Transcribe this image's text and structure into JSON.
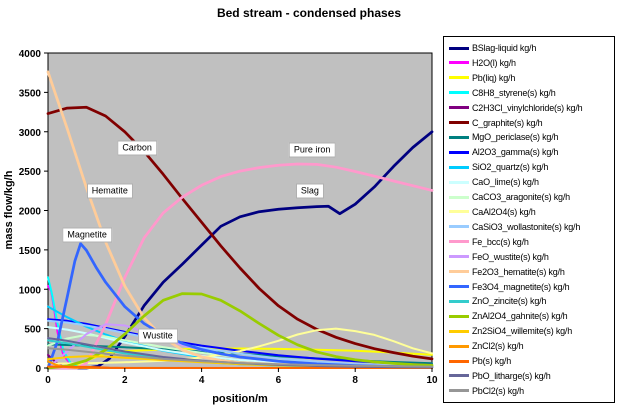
{
  "chart_data": {
    "type": "line",
    "title": "Bed stream - condensed phases",
    "xlabel": "position/m",
    "ylabel": "mass flow/kg/h",
    "xlim": [
      0,
      10
    ],
    "ylim": [
      0,
      4000
    ],
    "x_ticks": [
      0,
      2,
      4,
      6,
      8,
      10
    ],
    "y_ticks": [
      0,
      500,
      1000,
      1500,
      2000,
      2500,
      3000,
      3500,
      4000
    ],
    "grid": false,
    "plot_bg_color": "#C0C0C0",
    "plot_border_color": "#000000",
    "legend_position": "right",
    "annotations": [
      {
        "text": "Carbon",
        "x": 2.32,
        "y": 2790
      },
      {
        "text": "Hematite",
        "x": 1.61,
        "y": 2250
      },
      {
        "text": "Magnetite",
        "x": 1.02,
        "y": 1690
      },
      {
        "text": "Wustite",
        "x": 2.86,
        "y": 410
      },
      {
        "text": "Pure iron",
        "x": 6.88,
        "y": 2770
      },
      {
        "text": "Slag",
        "x": 6.82,
        "y": 2250
      }
    ],
    "series": [
      {
        "name": "BSlag-liquid kg/h",
        "color": "#000080",
        "width": 2.75,
        "x": [
          0,
          0.5,
          1,
          1.3,
          1.6,
          2,
          2.5,
          3,
          3.5,
          4,
          4.5,
          5,
          5.5,
          6,
          6.5,
          7,
          7.3,
          7.6,
          8,
          8.5,
          9,
          9.5,
          10
        ],
        "y": [
          0,
          0,
          0,
          20,
          120,
          400,
          790,
          1090,
          1320,
          1560,
          1800,
          1920,
          1985,
          2015,
          2035,
          2050,
          2055,
          1960,
          2080,
          2300,
          2560,
          2800,
          3000
        ]
      },
      {
        "name": "H2O(l) kg/h",
        "color": "#FF00FF",
        "width": 2,
        "x": [
          0,
          0.08,
          0.15,
          0.25,
          0.4,
          0.6,
          0.8,
          1,
          1.5,
          10
        ],
        "y": [
          1040,
          980,
          780,
          450,
          160,
          45,
          12,
          4,
          0,
          0
        ]
      },
      {
        "name": "Pb(liq) kg/h",
        "color": "#FFFF00",
        "width": 2,
        "x": [
          0,
          0.5,
          0.8,
          1,
          1.5,
          2,
          3,
          4,
          5,
          6,
          7,
          8,
          9,
          10
        ],
        "y": [
          0,
          0,
          40,
          95,
          185,
          215,
          235,
          245,
          248,
          242,
          233,
          220,
          195,
          168
        ]
      },
      {
        "name": "C8H8_styrene(s) kg/h",
        "color": "#00FFFF",
        "width": 2,
        "x": [
          0,
          0.1,
          0.25,
          0.4,
          0.6,
          0.8,
          1,
          10
        ],
        "y": [
          1150,
          950,
          560,
          220,
          55,
          10,
          0,
          0
        ]
      },
      {
        "name": "C2H3Cl_vinylchloride(s) kg/h",
        "color": "#800080",
        "width": 2,
        "x": [
          0,
          0.1,
          0.25,
          0.4,
          0.6,
          1,
          10
        ],
        "y": [
          165,
          120,
          55,
          18,
          4,
          0,
          0
        ]
      },
      {
        "name": "C_graphite(s) kg/h",
        "color": "#800000",
        "width": 2.75,
        "x": [
          0,
          0.5,
          1,
          1.5,
          2,
          2.5,
          3,
          3.5,
          4,
          4.5,
          5,
          5.5,
          6,
          6.5,
          7,
          7.5,
          8,
          8.5,
          9,
          9.5,
          10
        ],
        "y": [
          3230,
          3300,
          3310,
          3200,
          3000,
          2750,
          2460,
          2150,
          1850,
          1550,
          1270,
          1010,
          790,
          620,
          490,
          390,
          310,
          245,
          195,
          150,
          115
        ]
      },
      {
        "name": "MgO_periclase(s) kg/h",
        "color": "#008080",
        "width": 2,
        "x": [
          0,
          1,
          2,
          3,
          4,
          5,
          6,
          7,
          8,
          9,
          10
        ],
        "y": [
          300,
          285,
          263,
          238,
          210,
          180,
          150,
          122,
          97,
          76,
          60
        ]
      },
      {
        "name": "Al2O3_gamma(s) kg/h",
        "color": "#0000FF",
        "width": 2,
        "x": [
          0,
          0.5,
          1,
          1.5,
          2,
          3,
          4,
          5,
          6,
          7,
          8,
          9,
          10
        ],
        "y": [
          620,
          600,
          560,
          510,
          458,
          365,
          285,
          218,
          163,
          120,
          86,
          60,
          42
        ]
      },
      {
        "name": "SiO2_quartz(s) kg/h",
        "color": "#00CCFF",
        "width": 2,
        "x": [
          0,
          0.5,
          1,
          1.5,
          2,
          3,
          4,
          5,
          6,
          7,
          8,
          9,
          10
        ],
        "y": [
          780,
          645,
          525,
          425,
          342,
          218,
          138,
          88,
          56,
          36,
          23,
          15,
          10
        ]
      },
      {
        "name": "CaO_lime(s) kg/h",
        "color": "#CCFFFF",
        "width": 2,
        "x": [
          0,
          0.5,
          1,
          1.5,
          2,
          3,
          4,
          5,
          6,
          7,
          8,
          9,
          10
        ],
        "y": [
          520,
          488,
          440,
          382,
          322,
          225,
          152,
          102,
          67,
          44,
          28,
          18,
          12
        ]
      },
      {
        "name": "CaCO3_aragonite(s) kg/h",
        "color": "#CCFFCC",
        "width": 2,
        "x": [
          0,
          0.5,
          1,
          1.5,
          2,
          3,
          4,
          5,
          6,
          7,
          8,
          9,
          10
        ],
        "y": [
          285,
          375,
          420,
          400,
          352,
          265,
          192,
          135,
          92,
          60,
          38,
          24,
          15
        ]
      },
      {
        "name": "CaAl2O4(s) kg/h",
        "color": "#FFFF99",
        "width": 2,
        "x": [
          0,
          1,
          2,
          3,
          4,
          5,
          5.5,
          6,
          6.5,
          7,
          7.5,
          8,
          8.5,
          9,
          9.5,
          10
        ],
        "y": [
          55,
          60,
          72,
          92,
          132,
          215,
          275,
          345,
          425,
          480,
          500,
          468,
          420,
          340,
          250,
          185
        ]
      },
      {
        "name": "CaSiO3_wollastonite(s) kg/h",
        "color": "#99CCFF",
        "width": 2,
        "x": [
          0,
          0.5,
          1,
          1.5,
          2,
          3,
          4,
          5,
          6,
          7,
          8,
          9,
          10
        ],
        "y": [
          600,
          578,
          540,
          495,
          445,
          345,
          255,
          180,
          122,
          80,
          51,
          31,
          19
        ]
      },
      {
        "name": "Fe_bcc(s) kg/h",
        "color": "#FF99CC",
        "width": 2.75,
        "x": [
          0,
          0.75,
          1,
          1.5,
          2,
          2.5,
          3,
          3.5,
          4,
          4.5,
          5,
          5.5,
          6,
          6.5,
          7,
          7.5,
          8,
          8.5,
          9,
          9.5,
          10
        ],
        "y": [
          0,
          0,
          60,
          550,
          1150,
          1650,
          1970,
          2170,
          2320,
          2430,
          2500,
          2545,
          2575,
          2590,
          2585,
          2550,
          2495,
          2435,
          2375,
          2315,
          2255
        ]
      },
      {
        "name": "FeO_wustite(s) kg/h",
        "color": "#CC99FF",
        "width": 2,
        "x": [
          0,
          0.5,
          1,
          1.5,
          2,
          2.5,
          3,
          3.5,
          4,
          5,
          6,
          7,
          8,
          9,
          10
        ],
        "y": [
          0,
          210,
          430,
          555,
          540,
          460,
          372,
          292,
          226,
          136,
          82,
          49,
          29,
          17,
          10
        ]
      },
      {
        "name": "Fe2O3_hematite(s) kg/h",
        "color": "#FFCC99",
        "width": 2.75,
        "x": [
          0,
          0.5,
          1,
          1.5,
          2,
          2.5,
          3,
          3.5,
          4,
          4.5,
          5,
          6,
          7,
          8,
          9,
          10
        ],
        "y": [
          3760,
          3040,
          2290,
          1600,
          1040,
          640,
          385,
          228,
          142,
          96,
          70,
          46,
          33,
          26,
          22,
          18
        ]
      },
      {
        "name": "Fe3O4_magnetite(s) kg/h",
        "color": "#3366FF",
        "width": 2.75,
        "x": [
          0,
          0.25,
          0.5,
          0.7,
          0.85,
          1,
          1.25,
          1.5,
          2,
          2.5,
          3,
          3.5,
          4,
          4.5,
          5,
          6,
          7,
          8,
          9,
          10
        ],
        "y": [
          0,
          340,
          900,
          1360,
          1580,
          1495,
          1280,
          1090,
          780,
          565,
          420,
          312,
          235,
          180,
          140,
          86,
          52,
          31,
          19,
          12
        ]
      },
      {
        "name": "ZnO_zincite(s) kg/h",
        "color": "#33CCCC",
        "width": 2,
        "x": [
          0,
          0.5,
          1,
          1.5,
          2,
          3,
          4,
          5,
          6,
          7,
          8,
          9,
          10
        ],
        "y": [
          350,
          315,
          270,
          226,
          186,
          120,
          76,
          48,
          30,
          19,
          11,
          7,
          4
        ]
      },
      {
        "name": "ZnAl2O4_gahnite(s) kg/h",
        "color": "#99CC00",
        "width": 2.75,
        "x": [
          0,
          0.5,
          1,
          1.5,
          2,
          2.5,
          3,
          3.5,
          4,
          4.5,
          5,
          5.5,
          6,
          6.5,
          7,
          7.5,
          8,
          8.5,
          9,
          9.5,
          10
        ],
        "y": [
          0,
          25,
          95,
          230,
          430,
          660,
          860,
          945,
          940,
          860,
          725,
          565,
          415,
          295,
          205,
          145,
          105,
          78,
          58,
          44,
          34
        ]
      },
      {
        "name": "Zn2SiO4_willemite(s) kg/h",
        "color": "#FFCC00",
        "width": 2,
        "x": [
          0,
          0.5,
          1,
          1.5,
          2,
          3,
          4,
          5,
          6,
          7,
          8,
          9,
          10
        ],
        "y": [
          110,
          138,
          150,
          145,
          130,
          100,
          72,
          50,
          33,
          21,
          13,
          8,
          5
        ]
      },
      {
        "name": "ZnCl2(s) kg/h",
        "color": "#FF9900",
        "width": 2,
        "x": [
          0,
          0.2,
          0.4,
          0.7,
          1,
          10
        ],
        "y": [
          85,
          42,
          16,
          4,
          1,
          0
        ]
      },
      {
        "name": "Pb(s) kg/h",
        "color": "#FF6600",
        "width": 2,
        "x": [
          0,
          0.5,
          1,
          1.3,
          1.6,
          2,
          10
        ],
        "y": [
          18,
          17,
          14,
          9,
          3,
          0,
          0
        ]
      },
      {
        "name": "PbO_litharge(s) kg/h",
        "color": "#666699",
        "width": 2,
        "x": [
          0,
          0.5,
          1,
          1.5,
          2,
          3,
          4,
          5,
          6,
          7,
          8,
          9,
          10
        ],
        "y": [
          380,
          346,
          300,
          254,
          210,
          140,
          92,
          60,
          39,
          25,
          16,
          10,
          6
        ]
      },
      {
        "name": "PbCl2(s) kg/h",
        "color": "#969696",
        "width": 2,
        "x": [
          0,
          0.5,
          1,
          2,
          3,
          4,
          5,
          6,
          7,
          8,
          9,
          10
        ],
        "y": [
          250,
          232,
          206,
          156,
          116,
          86,
          64,
          48,
          37,
          29,
          23,
          18
        ]
      }
    ]
  }
}
